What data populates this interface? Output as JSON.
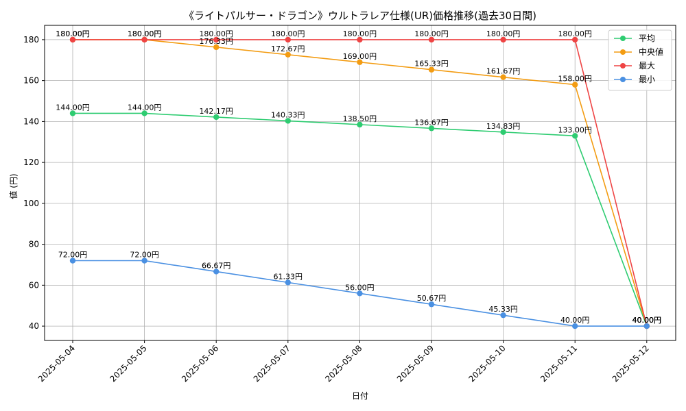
{
  "chart_data": {
    "type": "line",
    "title": "《ライトパルサー・ドラゴン》ウルトラレア仕様(UR)価格推移(過去30日間)",
    "xlabel": "日付",
    "ylabel": "値 (円)",
    "categories": [
      "2025-05-04",
      "2025-05-05",
      "2025-05-06",
      "2025-05-07",
      "2025-05-08",
      "2025-05-09",
      "2025-05-10",
      "2025-05-11",
      "2025-05-12"
    ],
    "ylim": [
      33,
      187
    ],
    "yticks": [
      40,
      60,
      80,
      100,
      120,
      140,
      160,
      180
    ],
    "grid": true,
    "legend_position": "top-right",
    "value_suffix": "円",
    "series": [
      {
        "name": "平均",
        "color": "#2ecc71",
        "values": [
          144.0,
          144.0,
          142.17,
          140.33,
          138.5,
          136.67,
          134.83,
          133.0,
          40.0
        ]
      },
      {
        "name": "中央値",
        "color": "#f39c12",
        "values": [
          180.0,
          180.0,
          176.33,
          172.67,
          169.0,
          165.33,
          161.67,
          158.0,
          40.0
        ]
      },
      {
        "name": "最大",
        "color": "#ef4444",
        "values": [
          180.0,
          180.0,
          180.0,
          180.0,
          180.0,
          180.0,
          180.0,
          180.0,
          40.0
        ]
      },
      {
        "name": "最小",
        "color": "#4a90e2",
        "values": [
          72.0,
          72.0,
          66.67,
          61.33,
          56.0,
          50.67,
          45.33,
          40.0,
          40.0
        ]
      }
    ]
  }
}
